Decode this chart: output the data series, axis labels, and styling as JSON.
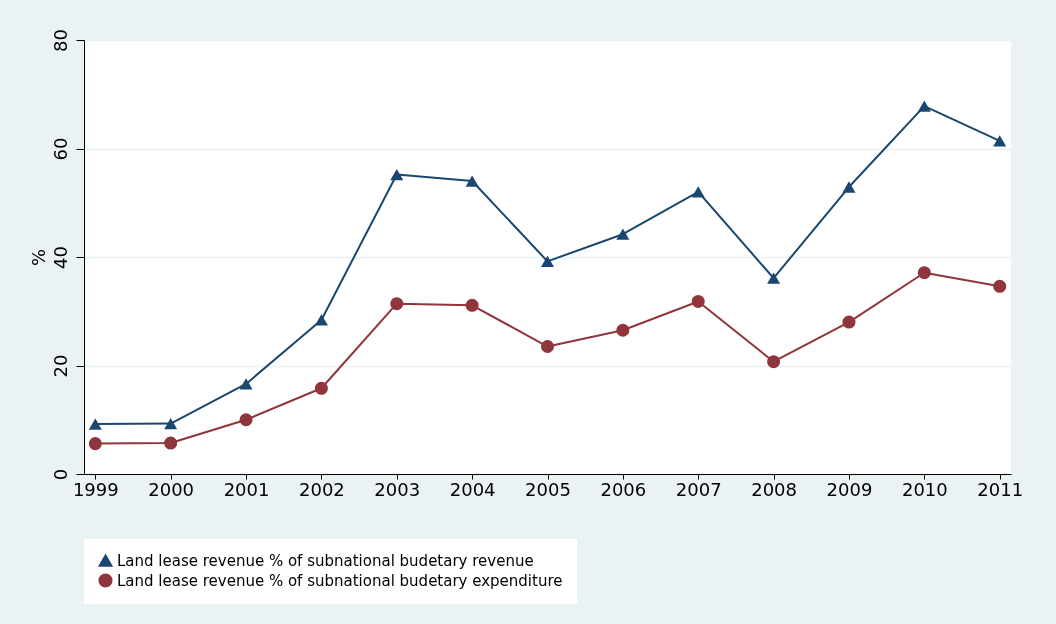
{
  "chart_data": {
    "type": "line",
    "ylabel": "%",
    "categories": [
      "1999",
      "2000",
      "2001",
      "2002",
      "2003",
      "2004",
      "2005",
      "2006",
      "2007",
      "2008",
      "2009",
      "2010",
      "2011"
    ],
    "series": [
      {
        "name": "Land lease revenue % of subnational budetary revenue",
        "color": "#1a476f",
        "marker": "triangle",
        "values": [
          9.2,
          9.3,
          16.6,
          28.4,
          55.2,
          54,
          39.2,
          44.2,
          52,
          36.1,
          52.9,
          67.8,
          61.4
        ]
      },
      {
        "name": "Land lease revenue % of subnational budetary expenditure",
        "color": "#90353b",
        "marker": "circle",
        "values": [
          5.6,
          5.7,
          10,
          15.8,
          31.4,
          31.1,
          23.5,
          26.5,
          31.8,
          20.7,
          28,
          37.1,
          34.6
        ]
      }
    ],
    "ylim": [
      0,
      80
    ],
    "yticks": [
      0,
      20,
      40,
      60,
      80
    ],
    "grid": "y",
    "legend": "bottom",
    "line_style": "solid"
  }
}
